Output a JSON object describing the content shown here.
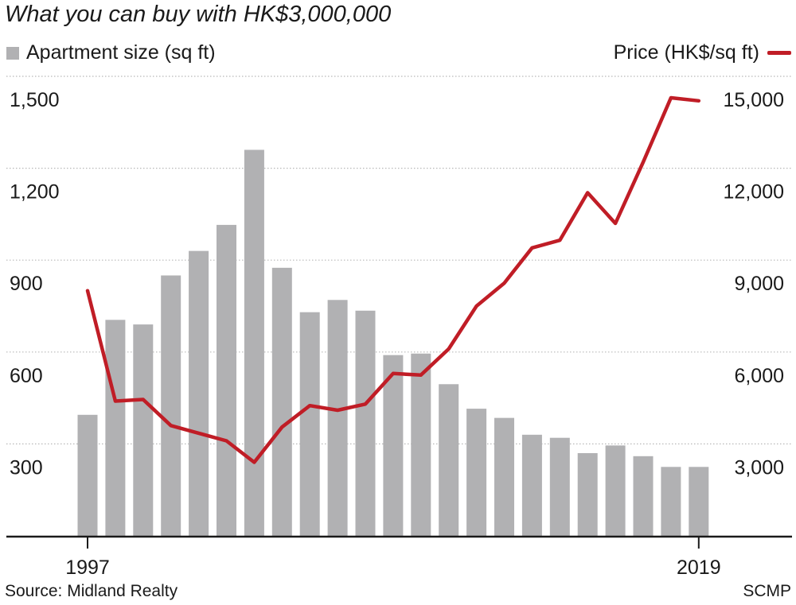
{
  "title": "What you can buy with HK$3,000,000",
  "legend": {
    "left_label": "Apartment size (sq ft)",
    "right_label": "Price (HK$/sq ft)"
  },
  "footer": {
    "source": "Source: Midland Realty",
    "credit": "SCMP"
  },
  "colors": {
    "bar": "#b1b1b3",
    "line": "#c01d26",
    "grid": "#b8b8b8",
    "axis": "#1a1a1a"
  },
  "chart_data": {
    "type": "bar",
    "years": [
      1997,
      1998,
      1999,
      2000,
      2001,
      2002,
      2003,
      2004,
      2005,
      2006,
      2007,
      2008,
      2009,
      2010,
      2011,
      2012,
      2013,
      2014,
      2015,
      2016,
      2017,
      2018,
      2019
    ],
    "x_tick_labels": [
      {
        "year": 1997,
        "label": "1997"
      },
      {
        "year": 2019,
        "label": "2019"
      }
    ],
    "left_axis": {
      "label": "Apartment size (sq ft)",
      "min": 0,
      "max": 1500,
      "ticks": [
        "300",
        "600",
        "900",
        "1,200",
        "1,500"
      ],
      "tick_values": [
        300,
        600,
        900,
        1200,
        1500
      ]
    },
    "right_axis": {
      "label": "Price (HK$/sq ft)",
      "min": 0,
      "max": 15000,
      "ticks": [
        "3,000",
        "6,000",
        "9,000",
        "12,000",
        "15,000"
      ],
      "tick_values": [
        3000,
        6000,
        9000,
        12000,
        15000
      ]
    },
    "series": [
      {
        "name": "Apartment size (sq ft)",
        "type": "bar",
        "axis": "left",
        "values": [
          395,
          705,
          690,
          850,
          930,
          1015,
          1260,
          875,
          730,
          770,
          735,
          590,
          595,
          495,
          415,
          385,
          330,
          320,
          270,
          295,
          260,
          225,
          225
        ]
      },
      {
        "name": "Price (HK$/sq ft)",
        "type": "line",
        "axis": "right",
        "values": [
          8000,
          4400,
          4450,
          3600,
          3350,
          3100,
          2400,
          3550,
          4250,
          4100,
          4300,
          5300,
          5250,
          6100,
          7500,
          8250,
          9400,
          9650,
          11200,
          10200,
          12200,
          14300,
          14200
        ]
      }
    ],
    "grid": true,
    "legend_placement": "top"
  }
}
